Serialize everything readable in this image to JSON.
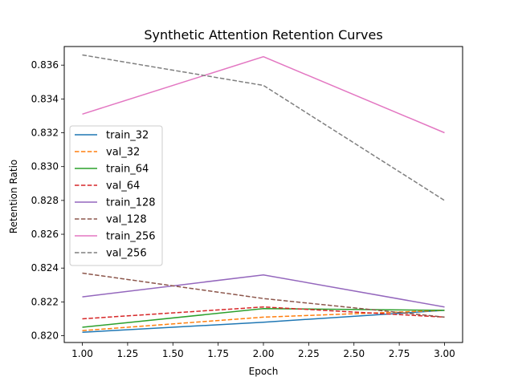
{
  "chart_data": {
    "type": "line",
    "title": "Synthetic Attention Retention Curves",
    "xlabel": "Epoch",
    "ylabel": "Retention Ratio",
    "xlim": [
      0.9,
      3.1
    ],
    "ylim": [
      0.8196,
      0.8371
    ],
    "xticks": [
      1.0,
      1.25,
      1.5,
      1.75,
      2.0,
      2.25,
      2.5,
      2.75,
      3.0
    ],
    "xtick_labels": [
      "1.00",
      "1.25",
      "1.50",
      "1.75",
      "2.00",
      "2.25",
      "2.50",
      "2.75",
      "3.00"
    ],
    "yticks": [
      0.82,
      0.822,
      0.824,
      0.826,
      0.828,
      0.83,
      0.832,
      0.834,
      0.836
    ],
    "ytick_labels": [
      "0.820",
      "0.822",
      "0.824",
      "0.826",
      "0.828",
      "0.830",
      "0.832",
      "0.834",
      "0.836"
    ],
    "grid": false,
    "legend_position": "center-left",
    "x": [
      1,
      2,
      3
    ],
    "series": [
      {
        "name": "train_32",
        "values": [
          0.8202,
          0.8208,
          0.8215
        ],
        "color": "#1f77b4",
        "dashed": false
      },
      {
        "name": "val_32",
        "values": [
          0.8203,
          0.8211,
          0.8215
        ],
        "color": "#ff7f0e",
        "dashed": true
      },
      {
        "name": "train_64",
        "values": [
          0.8205,
          0.8216,
          0.8215
        ],
        "color": "#2ca02c",
        "dashed": false
      },
      {
        "name": "val_64",
        "values": [
          0.821,
          0.8217,
          0.8211
        ],
        "color": "#d62728",
        "dashed": true
      },
      {
        "name": "train_128",
        "values": [
          0.8223,
          0.8236,
          0.8217
        ],
        "color": "#9467bd",
        "dashed": false
      },
      {
        "name": "val_128",
        "values": [
          0.8237,
          0.8222,
          0.8211
        ],
        "color": "#8c564b",
        "dashed": true
      },
      {
        "name": "train_256",
        "values": [
          0.8331,
          0.8365,
          0.832
        ],
        "color": "#e377c2",
        "dashed": false
      },
      {
        "name": "val_256",
        "values": [
          0.8366,
          0.8348,
          0.828
        ],
        "color": "#7f7f7f",
        "dashed": true
      }
    ]
  }
}
